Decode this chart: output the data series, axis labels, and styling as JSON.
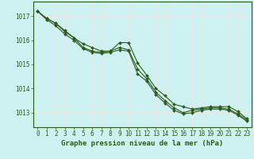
{
  "title": "Graphe pression niveau de la mer (hPa)",
  "background_color": "#cdf0f0",
  "grid_color": "#e8e8e8",
  "line_color": "#2d5a1b",
  "x_labels": [
    "0",
    "1",
    "2",
    "3",
    "4",
    "5",
    "6",
    "7",
    "8",
    "9",
    "10",
    "11",
    "12",
    "13",
    "14",
    "15",
    "16",
    "17",
    "18",
    "19",
    "20",
    "21",
    "22",
    "23"
  ],
  "xlim": [
    -0.5,
    23.5
  ],
  "ylim": [
    1012.4,
    1017.6
  ],
  "yticks": [
    1013,
    1014,
    1015,
    1016,
    1017
  ],
  "series1": [
    1017.2,
    1016.9,
    1016.7,
    1016.4,
    1016.1,
    1015.85,
    1015.7,
    1015.55,
    1015.55,
    1015.9,
    1015.9,
    1015.05,
    1014.55,
    1014.0,
    1013.7,
    1013.35,
    1013.25,
    1013.15,
    1013.2,
    1013.25,
    1013.25,
    1013.25,
    1013.05,
    1012.75
  ],
  "series2": [
    1017.2,
    1016.9,
    1016.7,
    1016.35,
    1016.1,
    1015.7,
    1015.55,
    1015.5,
    1015.55,
    1015.7,
    1015.6,
    1014.8,
    1014.4,
    1013.85,
    1013.5,
    1013.2,
    1013.0,
    1013.1,
    1013.15,
    1013.2,
    1013.2,
    1013.15,
    1012.95,
    1012.7
  ],
  "series3": [
    1017.2,
    1016.85,
    1016.6,
    1016.25,
    1016.0,
    1015.65,
    1015.5,
    1015.45,
    1015.5,
    1015.6,
    1015.55,
    1014.6,
    1014.3,
    1013.75,
    1013.4,
    1013.1,
    1012.95,
    1013.0,
    1013.1,
    1013.15,
    1013.15,
    1013.1,
    1012.9,
    1012.65
  ],
  "title_fontsize": 6.5,
  "tick_fontsize": 5.5,
  "marker": "D",
  "marker_size": 2.0,
  "linewidth": 0.8
}
